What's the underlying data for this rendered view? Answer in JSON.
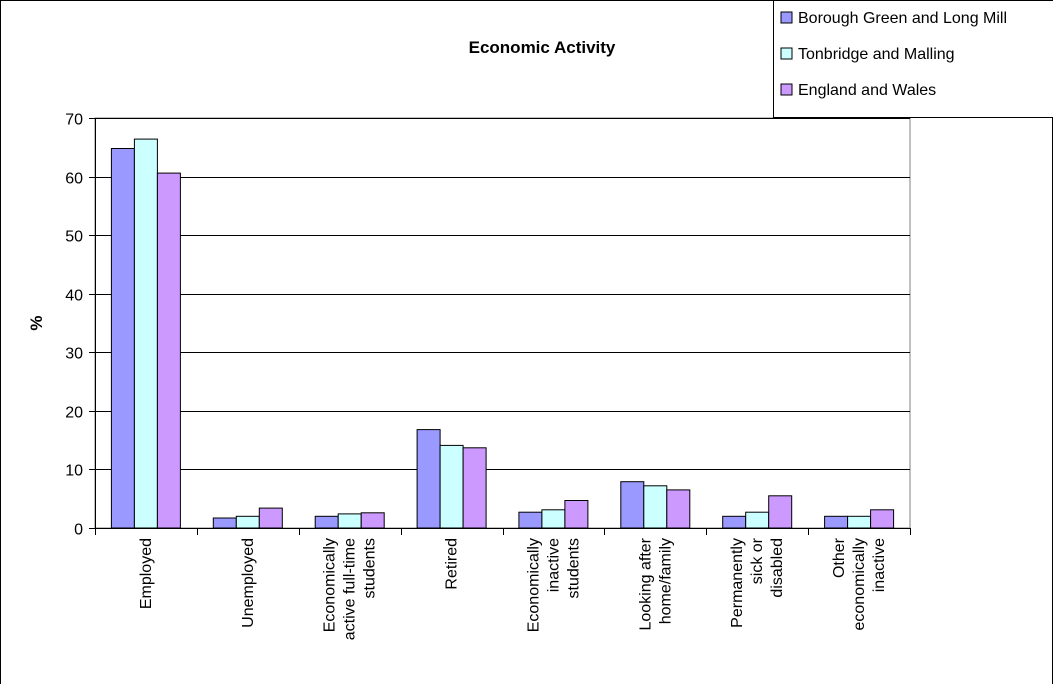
{
  "chart_data": {
    "type": "bar",
    "title": "Economic Activity",
    "ylabel": "%",
    "xlabel": "",
    "ylim": [
      0,
      70
    ],
    "yticks": [
      0,
      10,
      20,
      30,
      40,
      50,
      60,
      70
    ],
    "grid": true,
    "legend_position": "top-right",
    "categories": [
      [
        "Employed"
      ],
      [
        "Unemployed"
      ],
      [
        "Economically",
        "active full-time",
        "students"
      ],
      [
        "Retired"
      ],
      [
        "Economically",
        "inactive",
        "students"
      ],
      [
        "Looking after",
        "home/family"
      ],
      [
        "Permanently",
        "sick or",
        "disabled"
      ],
      [
        "Other",
        "economically",
        "inactive"
      ]
    ],
    "series": [
      {
        "name": "Borough Green and Long Mill",
        "color": "#9999ff",
        "values": [
          64.8,
          1.7,
          2.0,
          16.8,
          2.7,
          7.9,
          2.0,
          2.0
        ]
      },
      {
        "name": "Tonbridge and Malling",
        "color": "#ccffff",
        "values": [
          66.4,
          2.0,
          2.4,
          14.1,
          3.1,
          7.2,
          2.7,
          2.0
        ]
      },
      {
        "name": "England and Wales",
        "color": "#cc99ff",
        "values": [
          60.6,
          3.4,
          2.6,
          13.7,
          4.7,
          6.5,
          5.5,
          3.1
        ]
      }
    ]
  }
}
